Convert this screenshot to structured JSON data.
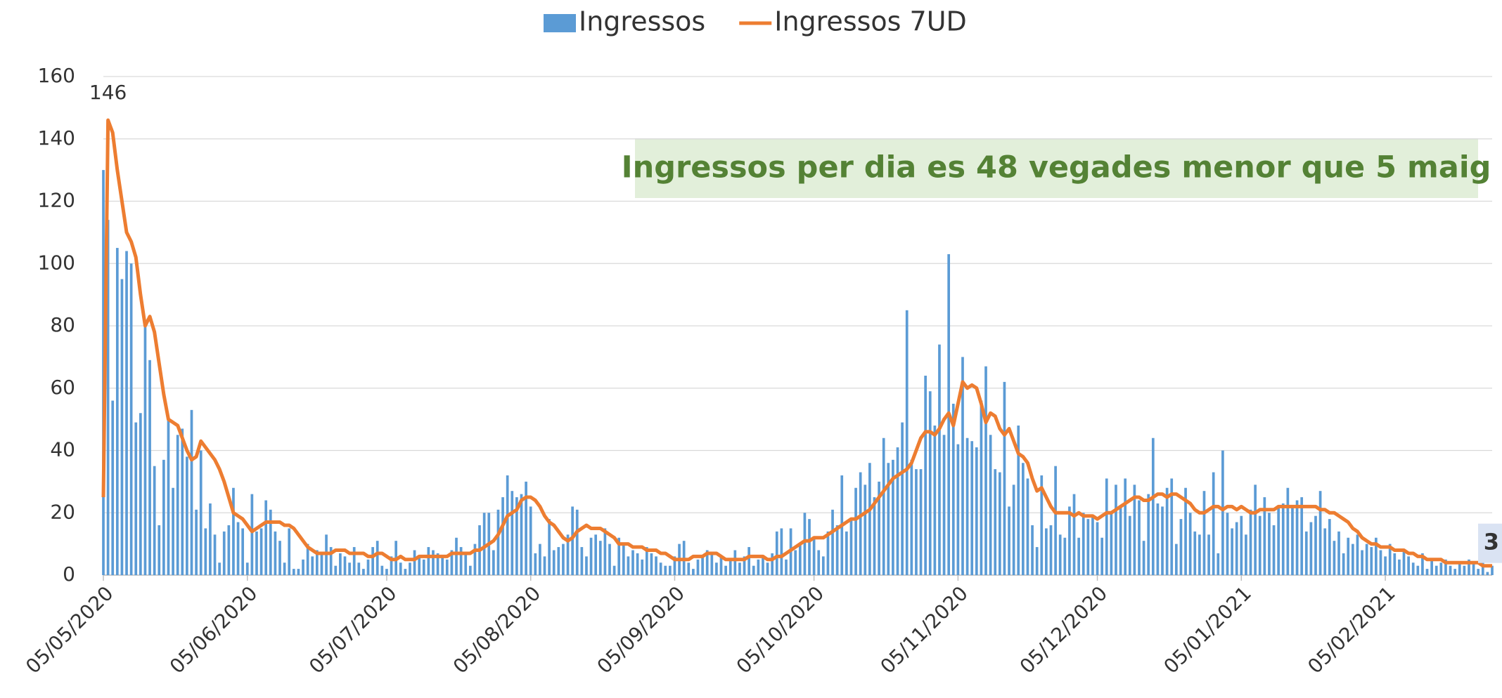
{
  "chart_data": {
    "type": "bar",
    "annotation": "Ingressos per dia es 48 vegades menor que 5 maig",
    "legend": "top",
    "grid": true,
    "ylim": [
      0,
      160
    ],
    "yticks": [
      0,
      20,
      40,
      60,
      80,
      100,
      120,
      140,
      160
    ],
    "xlim": [
      "05/05/2020",
      "28/02/2021"
    ],
    "xticks": [
      "05/05/2020",
      "05/06/2020",
      "05/07/2020",
      "05/08/2020",
      "05/09/2020",
      "05/10/2020",
      "05/11/2020",
      "05/12/2020",
      "05/01/2021",
      "05/02/2021"
    ],
    "x": [
      "05/05/2020",
      "06/05/2020",
      "07/05/2020",
      "08/05/2020",
      "09/05/2020",
      "10/05/2020",
      "11/05/2020",
      "12/05/2020",
      "13/05/2020",
      "14/05/2020",
      "15/05/2020",
      "16/05/2020",
      "17/05/2020",
      "18/05/2020",
      "19/05/2020",
      "20/05/2020",
      "21/05/2020",
      "22/05/2020",
      "23/05/2020",
      "24/05/2020",
      "25/05/2020",
      "26/05/2020",
      "27/05/2020",
      "28/05/2020",
      "29/05/2020",
      "30/05/2020",
      "31/05/2020",
      "01/06/2020",
      "02/06/2020",
      "03/06/2020",
      "04/06/2020",
      "05/06/2020",
      "06/06/2020",
      "07/06/2020",
      "08/06/2020",
      "09/06/2020",
      "10/06/2020",
      "11/06/2020",
      "12/06/2020",
      "13/06/2020",
      "14/06/2020",
      "15/06/2020",
      "16/06/2020",
      "17/06/2020",
      "18/06/2020",
      "19/06/2020",
      "20/06/2020",
      "21/06/2020",
      "22/06/2020",
      "23/06/2020",
      "24/06/2020",
      "25/06/2020",
      "26/06/2020",
      "27/06/2020",
      "28/06/2020",
      "29/06/2020",
      "30/06/2020",
      "01/07/2020",
      "02/07/2020",
      "03/07/2020",
      "04/07/2020",
      "05/07/2020",
      "06/07/2020",
      "07/07/2020",
      "08/07/2020",
      "09/07/2020",
      "10/07/2020",
      "11/07/2020",
      "12/07/2020",
      "13/07/2020",
      "14/07/2020",
      "15/07/2020",
      "16/07/2020",
      "17/07/2020",
      "18/07/2020",
      "19/07/2020",
      "20/07/2020",
      "21/07/2020",
      "22/07/2020",
      "23/07/2020",
      "24/07/2020",
      "25/07/2020",
      "26/07/2020",
      "27/07/2020",
      "28/07/2020",
      "29/07/2020",
      "30/07/2020",
      "31/07/2020",
      "01/08/2020",
      "02/08/2020",
      "03/08/2020",
      "04/08/2020",
      "05/08/2020",
      "06/08/2020",
      "07/08/2020",
      "08/08/2020",
      "09/08/2020",
      "10/08/2020",
      "11/08/2020",
      "12/08/2020",
      "13/08/2020",
      "14/08/2020",
      "15/08/2020",
      "16/08/2020",
      "17/08/2020",
      "18/08/2020",
      "19/08/2020",
      "20/08/2020",
      "21/08/2020",
      "22/08/2020",
      "23/08/2020",
      "24/08/2020",
      "25/08/2020",
      "26/08/2020",
      "27/08/2020",
      "28/08/2020",
      "29/08/2020",
      "30/08/2020",
      "31/08/2020",
      "01/09/2020",
      "02/09/2020",
      "03/09/2020",
      "04/09/2020",
      "05/09/2020",
      "06/09/2020",
      "07/09/2020",
      "08/09/2020",
      "09/09/2020",
      "10/09/2020",
      "11/09/2020",
      "12/09/2020",
      "13/09/2020",
      "14/09/2020",
      "15/09/2020",
      "16/09/2020",
      "17/09/2020",
      "18/09/2020",
      "19/09/2020",
      "20/09/2020",
      "21/09/2020",
      "22/09/2020",
      "23/09/2020",
      "24/09/2020",
      "25/09/2020",
      "26/09/2020",
      "27/09/2020",
      "28/09/2020",
      "29/09/2020",
      "30/09/2020",
      "01/10/2020",
      "02/10/2020",
      "03/10/2020",
      "04/10/2020",
      "05/10/2020",
      "06/10/2020",
      "07/10/2020",
      "08/10/2020",
      "09/10/2020",
      "10/10/2020",
      "11/10/2020",
      "12/10/2020",
      "13/10/2020",
      "14/10/2020",
      "15/10/2020",
      "16/10/2020",
      "17/10/2020",
      "18/10/2020",
      "19/10/2020",
      "20/10/2020",
      "21/10/2020",
      "22/10/2020",
      "23/10/2020",
      "24/10/2020",
      "25/10/2020",
      "26/10/2020",
      "27/10/2020",
      "28/10/2020",
      "29/10/2020",
      "30/10/2020",
      "31/10/2020",
      "01/11/2020",
      "02/11/2020",
      "03/11/2020",
      "04/11/2020",
      "05/11/2020",
      "06/11/2020",
      "07/11/2020",
      "08/11/2020",
      "09/11/2020",
      "10/11/2020",
      "11/11/2020",
      "12/11/2020",
      "13/11/2020",
      "14/11/2020",
      "15/11/2020",
      "16/11/2020",
      "17/11/2020",
      "18/11/2020",
      "19/11/2020",
      "20/11/2020",
      "21/11/2020",
      "22/11/2020",
      "23/11/2020",
      "24/11/2020",
      "25/11/2020",
      "26/11/2020",
      "27/11/2020",
      "28/11/2020",
      "29/11/2020",
      "30/11/2020",
      "01/12/2020",
      "02/12/2020",
      "03/12/2020",
      "04/12/2020",
      "05/12/2020",
      "06/12/2020",
      "07/12/2020",
      "08/12/2020",
      "09/12/2020",
      "10/12/2020",
      "11/12/2020",
      "12/12/2020",
      "13/12/2020",
      "14/12/2020",
      "15/12/2020",
      "16/12/2020",
      "17/12/2020",
      "18/12/2020",
      "19/12/2020",
      "20/12/2020",
      "21/12/2020",
      "22/12/2020",
      "23/12/2020",
      "24/12/2020",
      "25/12/2020",
      "26/12/2020",
      "27/12/2020",
      "28/12/2020",
      "29/12/2020",
      "30/12/2020",
      "31/12/2020",
      "01/01/2021",
      "02/01/2021",
      "03/01/2021",
      "04/01/2021",
      "05/01/2021",
      "06/01/2021",
      "07/01/2021",
      "08/01/2021",
      "09/01/2021",
      "10/01/2021",
      "11/01/2021",
      "12/01/2021",
      "13/01/2021",
      "14/01/2021",
      "15/01/2021",
      "16/01/2021",
      "17/01/2021",
      "18/01/2021",
      "19/01/2021",
      "20/01/2021",
      "21/01/2021",
      "22/01/2021",
      "23/01/2021",
      "24/01/2021",
      "25/01/2021",
      "26/01/2021",
      "27/01/2021",
      "28/01/2021",
      "29/01/2021",
      "30/01/2021",
      "31/01/2021",
      "01/02/2021",
      "02/02/2021",
      "03/02/2021",
      "04/02/2021",
      "05/02/2021",
      "06/02/2021",
      "07/02/2021",
      "08/02/2021",
      "09/02/2021",
      "10/02/2021",
      "11/02/2021",
      "12/02/2021",
      "13/02/2021",
      "14/02/2021",
      "15/02/2021",
      "16/02/2021",
      "17/02/2021",
      "18/02/2021",
      "19/02/2021",
      "20/02/2021",
      "21/02/2021",
      "22/02/2021",
      "23/02/2021",
      "24/02/2021",
      "25/02/2021",
      "26/02/2021",
      "27/02/2021",
      "28/02/2021"
    ],
    "series": [
      {
        "name": "Ingressos",
        "type": "bar",
        "color": "#5b9bd5",
        "values": [
          130,
          114,
          56,
          105,
          95,
          104,
          100,
          49,
          52,
          80,
          69,
          35,
          16,
          37,
          50,
          28,
          45,
          47,
          38,
          53,
          21,
          40,
          15,
          23,
          13,
          4,
          14,
          16,
          28,
          17,
          15,
          4,
          26,
          14,
          15,
          24,
          21,
          14,
          11,
          4,
          15,
          2,
          2,
          5,
          10,
          6,
          8,
          7,
          13,
          9,
          3,
          7,
          6,
          4,
          9,
          4,
          2,
          5,
          9,
          11,
          3,
          2,
          6,
          11,
          4,
          2,
          4,
          8,
          6,
          5,
          9,
          8,
          7,
          6,
          5,
          8,
          12,
          9,
          7,
          3,
          10,
          16,
          20,
          20,
          8,
          21,
          25,
          32,
          27,
          25,
          26,
          30,
          22,
          7,
          10,
          6,
          18,
          8,
          9,
          10,
          13,
          22,
          21,
          9,
          6,
          12,
          13,
          11,
          15,
          10,
          3,
          12,
          10,
          6,
          8,
          7,
          5,
          9,
          7,
          6,
          4,
          3,
          3,
          6,
          10,
          11,
          4,
          2,
          5,
          6,
          8,
          7,
          4,
          6,
          3,
          5,
          8,
          4,
          6,
          9,
          3,
          5,
          6,
          4,
          7,
          14,
          15,
          5,
          15,
          8,
          10,
          20,
          18,
          12,
          8,
          6,
          14,
          21,
          16,
          32,
          14,
          18,
          28,
          33,
          29,
          36,
          25,
          30,
          44,
          36,
          37,
          41,
          49,
          85,
          37,
          34,
          34,
          64,
          59,
          48,
          74,
          45,
          103,
          55,
          42,
          70,
          44,
          43,
          41,
          56,
          67,
          45,
          34,
          33,
          62,
          22,
          29,
          48,
          36,
          31,
          16,
          9,
          32,
          15,
          16,
          35,
          13,
          12,
          22,
          26,
          12,
          20,
          18,
          19,
          17,
          12,
          31,
          20,
          29,
          22,
          31,
          19,
          29,
          24,
          11,
          26,
          44,
          23,
          22,
          28,
          31,
          10,
          18,
          28,
          20,
          14,
          13,
          27,
          13,
          33,
          7,
          40,
          20,
          15,
          17,
          19,
          13,
          21,
          29,
          19,
          25,
          20,
          16,
          22,
          23,
          28,
          22,
          24,
          25,
          14,
          17,
          19,
          27,
          15,
          18,
          11,
          14,
          7,
          12,
          10,
          13,
          8,
          10,
          9,
          12,
          8,
          6,
          10,
          7,
          5,
          8,
          6,
          4,
          3,
          7,
          2,
          5,
          3,
          4,
          5,
          3,
          2,
          4,
          3,
          5,
          4,
          2,
          4,
          1,
          3
        ]
      },
      {
        "name": "Ingressos 7UD",
        "type": "line",
        "color": "#ed7d31",
        "values": [
          25,
          146,
          142,
          130,
          120,
          110,
          107,
          102,
          90,
          80,
          83,
          78,
          68,
          58,
          50,
          49,
          48,
          44,
          40,
          37,
          38,
          43,
          41,
          39,
          37,
          34,
          30,
          25,
          20,
          19,
          18,
          16,
          14,
          15,
          16,
          17,
          17,
          17,
          17,
          16,
          16,
          15,
          13,
          11,
          9,
          8,
          7,
          7,
          7,
          7,
          8,
          8,
          8,
          7,
          7,
          7,
          7,
          6,
          6,
          7,
          7,
          6,
          5,
          5,
          6,
          5,
          5,
          5,
          6,
          6,
          6,
          6,
          6,
          6,
          6,
          7,
          7,
          7,
          7,
          7,
          8,
          8,
          9,
          10,
          11,
          13,
          16,
          19,
          20,
          21,
          24,
          25,
          25,
          24,
          22,
          19,
          17,
          16,
          14,
          12,
          11,
          12,
          14,
          15,
          16,
          15,
          15,
          15,
          14,
          13,
          12,
          10,
          10,
          10,
          9,
          9,
          9,
          8,
          8,
          8,
          7,
          7,
          6,
          5,
          5,
          5,
          5,
          6,
          6,
          6,
          7,
          7,
          7,
          6,
          5,
          5,
          5,
          5,
          5,
          6,
          6,
          6,
          6,
          5,
          5,
          6,
          6,
          7,
          8,
          9,
          10,
          11,
          11,
          12,
          12,
          12,
          13,
          14,
          15,
          16,
          17,
          18,
          18,
          19,
          20,
          21,
          23,
          25,
          27,
          29,
          31,
          32,
          33,
          34,
          36,
          40,
          44,
          46,
          46,
          45,
          47,
          50,
          52,
          48,
          55,
          62,
          60,
          61,
          60,
          55,
          49,
          52,
          51,
          47,
          45,
          47,
          43,
          39,
          38,
          36,
          31,
          27,
          28,
          25,
          22,
          20,
          20,
          20,
          20,
          19,
          20,
          19,
          19,
          19,
          18,
          19,
          20,
          20,
          21,
          22,
          23,
          24,
          25,
          25,
          24,
          24,
          25,
          26,
          26,
          25,
          26,
          26,
          25,
          24,
          23,
          21,
          20,
          20,
          21,
          22,
          22,
          21,
          22,
          22,
          21,
          22,
          21,
          20,
          20,
          21,
          21,
          21,
          21,
          22,
          22,
          22,
          22,
          22,
          22,
          22,
          22,
          22,
          21,
          21,
          20,
          20,
          19,
          18,
          17,
          15,
          14,
          12,
          11,
          10,
          10,
          9,
          9,
          9,
          8,
          8,
          8,
          7,
          7,
          6,
          6,
          5,
          5,
          5,
          5,
          4,
          4,
          4,
          4,
          4,
          4,
          4,
          4,
          3,
          3,
          3
        ]
      }
    ]
  }
}
